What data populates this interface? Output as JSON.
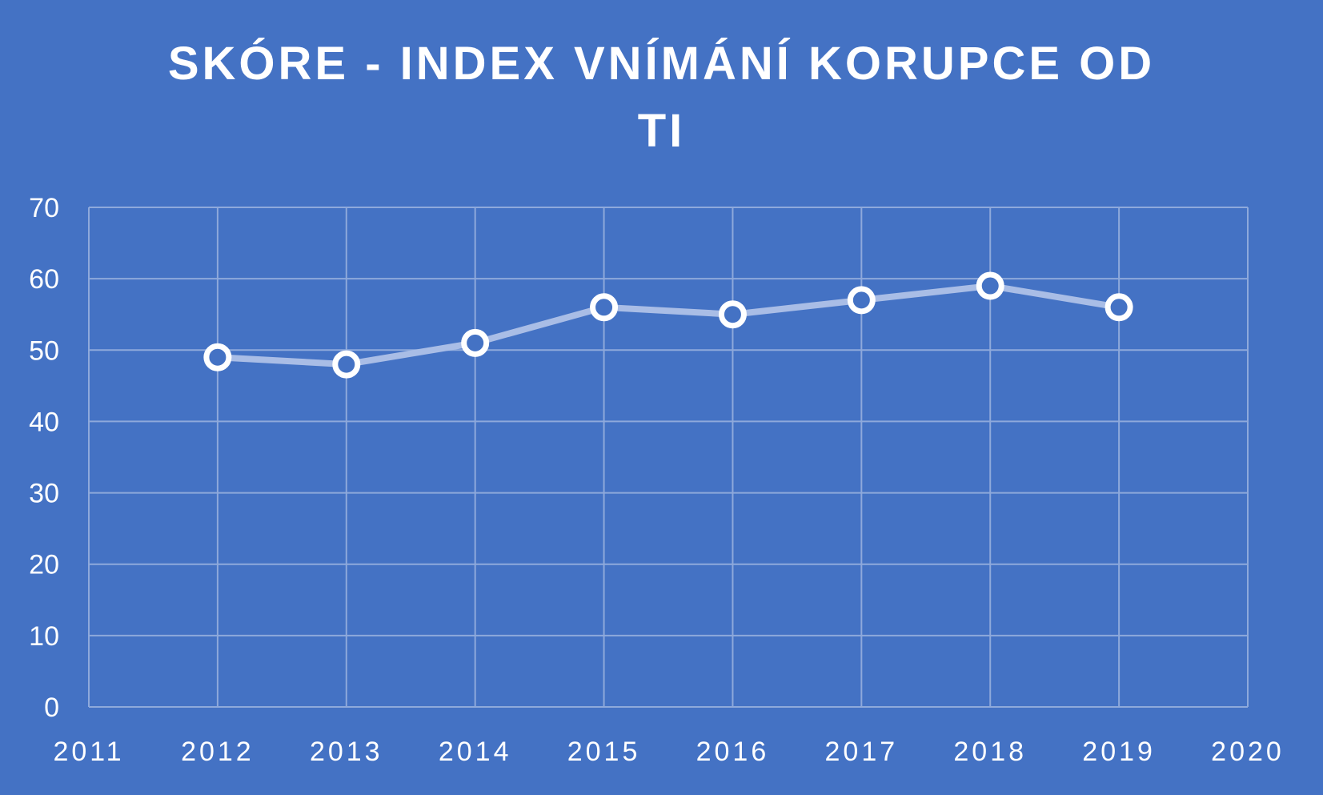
{
  "chart_data": {
    "type": "scatter",
    "title_lines": [
      "SKÓRE - INDEX VNÍMÁNÍ KORUPCE OD",
      "TI"
    ],
    "xlabel": "",
    "ylabel": "",
    "x": [
      2012,
      2013,
      2014,
      2015,
      2016,
      2017,
      2018,
      2019
    ],
    "y": [
      49,
      48,
      51,
      56,
      55,
      57,
      59,
      56
    ],
    "xlim": [
      2011,
      2020
    ],
    "ylim": [
      0,
      70
    ],
    "x_ticks": [
      "2011",
      "2012",
      "2013",
      "2014",
      "2015",
      "2016",
      "2017",
      "2018",
      "2019",
      "2020"
    ],
    "y_ticks": [
      "0",
      "10",
      "20",
      "30",
      "40",
      "50",
      "60",
      "70"
    ],
    "grid": true,
    "connected": true,
    "colors": {
      "background": "#4472C4",
      "line": "#A9BDE6",
      "marker_fill": "#4472C4",
      "marker_stroke": "#FFFFFF",
      "grid": "#8EA9DB"
    }
  }
}
